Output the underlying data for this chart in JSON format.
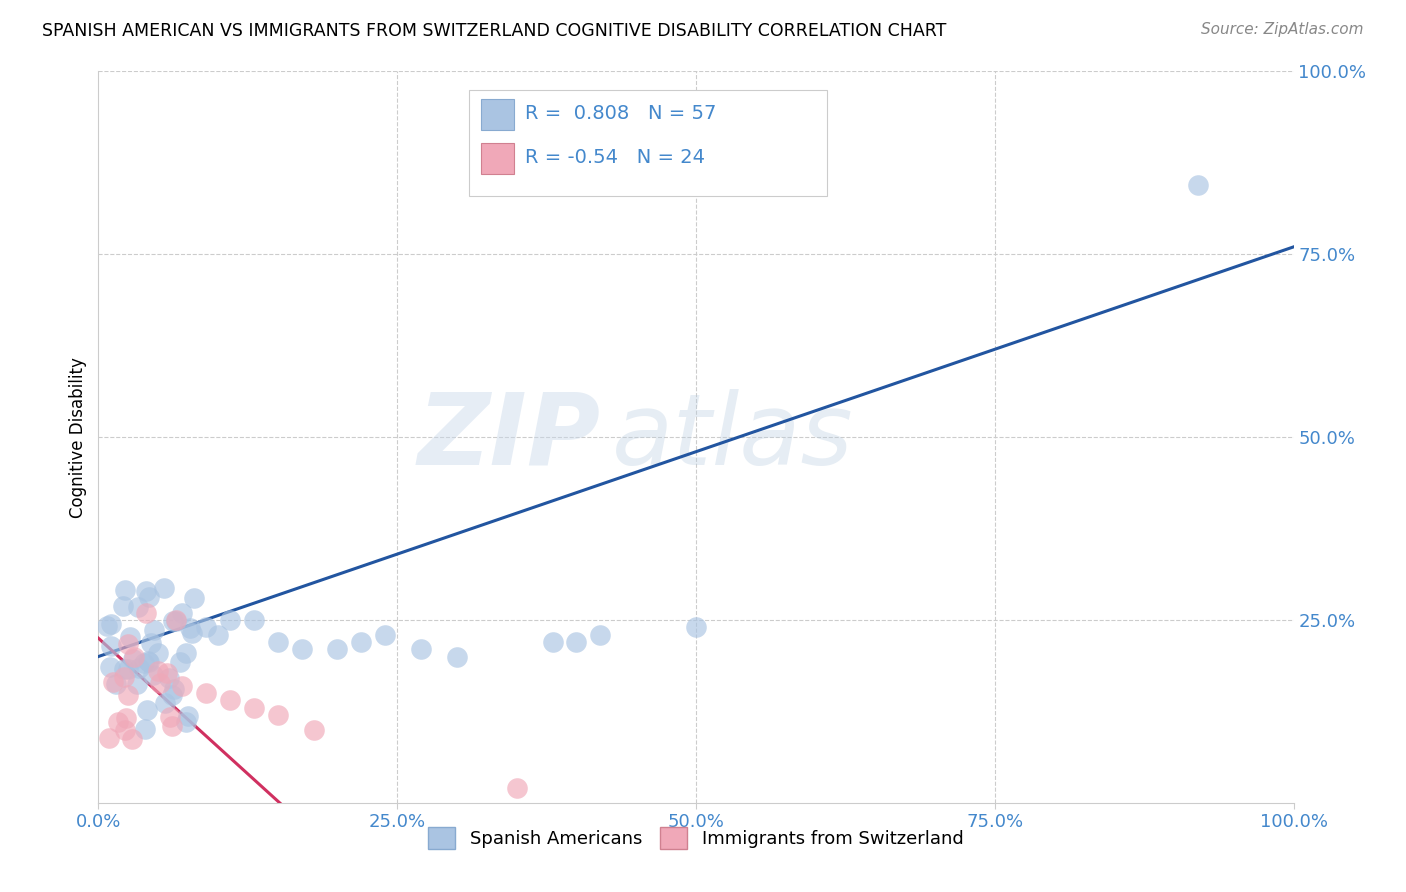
{
  "title": "SPANISH AMERICAN VS IMMIGRANTS FROM SWITZERLAND COGNITIVE DISABILITY CORRELATION CHART",
  "source": "Source: ZipAtlas.com",
  "ylabel": "Cognitive Disability",
  "xlim": [
    0.0,
    1.0
  ],
  "ylim": [
    0.0,
    1.0
  ],
  "xticks": [
    0.0,
    0.25,
    0.5,
    0.75,
    1.0
  ],
  "yticks": [
    0.25,
    0.5,
    0.75,
    1.0
  ],
  "xtick_labels": [
    "0.0%",
    "25.0%",
    "50.0%",
    "75.0%",
    "100.0%"
  ],
  "ytick_labels": [
    "25.0%",
    "50.0%",
    "75.0%",
    "100.0%"
  ],
  "blue_R": 0.808,
  "blue_N": 57,
  "pink_R": -0.54,
  "pink_N": 24,
  "blue_color": "#aac4e2",
  "pink_color": "#f0a8b8",
  "blue_line_color": "#2255a0",
  "pink_line_color": "#d03060",
  "watermark_zip": "ZIP",
  "watermark_atlas": "atlas",
  "background_color": "#ffffff",
  "grid_color": "#cccccc",
  "blue_line_x": [
    0.0,
    1.0
  ],
  "blue_line_y": [
    0.2,
    0.76
  ],
  "pink_line_x": [
    0.0,
    0.155
  ],
  "pink_line_y": [
    0.225,
    -0.005
  ],
  "tick_color": "#4488cc",
  "legend_label_color": "#000000",
  "legend_r_color": "#4488cc"
}
